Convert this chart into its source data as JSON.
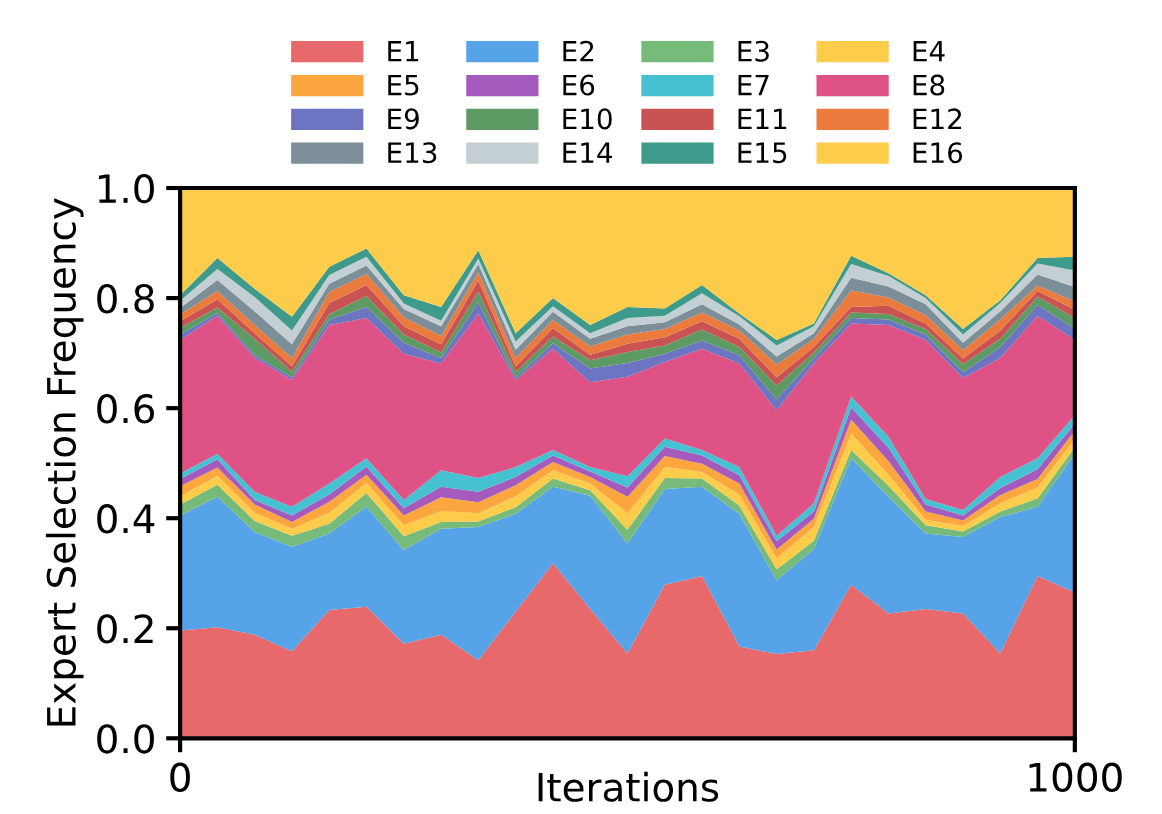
{
  "chart_data": {
    "type": "area",
    "stacked": true,
    "xlabel": "Iterations",
    "ylabel": "Expert Selection Frequency",
    "x": [
      0,
      41.7,
      83.3,
      125,
      166.7,
      208.3,
      250,
      291.7,
      333.3,
      375,
      416.7,
      458.3,
      500,
      541.7,
      583.3,
      625,
      666.7,
      708.3,
      750,
      791.7,
      833.3,
      875,
      916.7,
      958.3,
      1000
    ],
    "xlim": [
      0,
      1000
    ],
    "xticks": [
      0,
      1000
    ],
    "ylim": [
      0,
      1.0
    ],
    "yticks": [
      {
        "value": 0,
        "label": "0.0"
      },
      {
        "value": 0.2,
        "label": "0.2"
      },
      {
        "value": 0.4,
        "label": "0.4"
      },
      {
        "value": 0.6,
        "label": "0.6"
      },
      {
        "value": 0.8,
        "label": "0.8"
      },
      {
        "value": 1.0,
        "label": "1.0"
      }
    ],
    "legend": "top",
    "grid": false,
    "series": [
      {
        "name": "E1",
        "color": "#e8696b",
        "values": [
          0.196,
          0.202,
          0.188,
          0.158,
          0.233,
          0.239,
          0.172,
          0.188,
          0.142,
          0.23,
          0.318,
          0.235,
          0.154,
          0.279,
          0.295,
          0.167,
          0.153,
          0.16,
          0.279,
          0.227,
          0.235,
          0.227,
          0.154,
          0.295,
          0.265
        ]
      },
      {
        "name": "E2",
        "color": "#56a3e8",
        "values": [
          0.209,
          0.237,
          0.187,
          0.19,
          0.139,
          0.182,
          0.17,
          0.193,
          0.242,
          0.178,
          0.139,
          0.206,
          0.2,
          0.174,
          0.162,
          0.241,
          0.134,
          0.184,
          0.23,
          0.212,
          0.137,
          0.139,
          0.248,
          0.126,
          0.252
        ]
      },
      {
        "name": "E3",
        "color": "#77bb7a",
        "values": [
          0.02,
          0.022,
          0.02,
          0.02,
          0.018,
          0.025,
          0.025,
          0.012,
          0.01,
          0.012,
          0.015,
          0.01,
          0.025,
          0.02,
          0.015,
          0.015,
          0.02,
          0.015,
          0.015,
          0.02,
          0.015,
          0.01,
          0.01,
          0.015,
          0.012
        ]
      },
      {
        "name": "E4",
        "color": "#fdcc4b",
        "values": [
          0.015,
          0.016,
          0.015,
          0.013,
          0.02,
          0.018,
          0.02,
          0.02,
          0.015,
          0.02,
          0.015,
          0.012,
          0.03,
          0.02,
          0.012,
          0.02,
          0.02,
          0.025,
          0.03,
          0.02,
          0.01,
          0.01,
          0.015,
          0.02,
          0.015
        ]
      },
      {
        "name": "E5",
        "color": "#fca63f",
        "values": [
          0.018,
          0.015,
          0.015,
          0.012,
          0.02,
          0.015,
          0.018,
          0.025,
          0.02,
          0.02,
          0.015,
          0.012,
          0.03,
          0.02,
          0.015,
          0.02,
          0.016,
          0.015,
          0.025,
          0.025,
          0.015,
          0.01,
          0.015,
          0.015,
          0.015
        ]
      },
      {
        "name": "E6",
        "color": "#a45bbd",
        "values": [
          0.013,
          0.015,
          0.008,
          0.012,
          0.013,
          0.015,
          0.013,
          0.019,
          0.019,
          0.015,
          0.012,
          0.01,
          0.017,
          0.017,
          0.015,
          0.015,
          0.015,
          0.013,
          0.022,
          0.024,
          0.013,
          0.009,
          0.013,
          0.018,
          0.013
        ]
      },
      {
        "name": "E7",
        "color": "#45c1d2",
        "values": [
          0.01,
          0.01,
          0.015,
          0.016,
          0.02,
          0.015,
          0.015,
          0.03,
          0.025,
          0.018,
          0.01,
          0.008,
          0.02,
          0.015,
          0.01,
          0.015,
          0.01,
          0.015,
          0.02,
          0.02,
          0.01,
          0.01,
          0.02,
          0.02,
          0.015
        ]
      },
      {
        "name": "E8",
        "color": "#de5286",
        "values": [
          0.243,
          0.251,
          0.243,
          0.23,
          0.288,
          0.255,
          0.266,
          0.194,
          0.299,
          0.158,
          0.184,
          0.154,
          0.181,
          0.139,
          0.184,
          0.188,
          0.228,
          0.254,
          0.133,
          0.203,
          0.289,
          0.24,
          0.216,
          0.259,
          0.137
        ]
      },
      {
        "name": "E9",
        "color": "#6b75c1",
        "values": [
          0.01,
          0.005,
          0.005,
          0.005,
          0.01,
          0.02,
          0.02,
          0.01,
          0.02,
          0.005,
          0.01,
          0.025,
          0.025,
          0.015,
          0.015,
          0.015,
          0.02,
          0.01,
          0.01,
          0.01,
          0.01,
          0.01,
          0.02,
          0.02,
          0.02
        ]
      },
      {
        "name": "E10",
        "color": "#5e9a63",
        "values": [
          0.012,
          0.01,
          0.03,
          0.01,
          0.01,
          0.02,
          0.015,
          0.01,
          0.02,
          0.01,
          0.012,
          0.015,
          0.02,
          0.015,
          0.02,
          0.015,
          0.025,
          0.01,
          0.01,
          0.01,
          0.01,
          0.015,
          0.015,
          0.015,
          0.02
        ]
      },
      {
        "name": "E11",
        "color": "#c95253",
        "values": [
          0.012,
          0.015,
          0.01,
          0.01,
          0.02,
          0.02,
          0.015,
          0.015,
          0.02,
          0.01,
          0.015,
          0.01,
          0.015,
          0.015,
          0.015,
          0.015,
          0.015,
          0.01,
          0.01,
          0.015,
          0.01,
          0.01,
          0.015,
          0.01,
          0.015
        ]
      },
      {
        "name": "E12",
        "color": "#eb7a3d",
        "values": [
          0.012,
          0.015,
          0.015,
          0.015,
          0.02,
          0.02,
          0.016,
          0.015,
          0.015,
          0.015,
          0.015,
          0.015,
          0.017,
          0.015,
          0.016,
          0.015,
          0.023,
          0.015,
          0.03,
          0.015,
          0.015,
          0.015,
          0.02,
          0.01,
          0.015
        ]
      },
      {
        "name": "E13",
        "color": "#7c8e98",
        "values": [
          0.012,
          0.02,
          0.025,
          0.025,
          0.015,
          0.015,
          0.015,
          0.018,
          0.015,
          0.015,
          0.015,
          0.014,
          0.015,
          0.012,
          0.015,
          0.011,
          0.015,
          0.01,
          0.023,
          0.02,
          0.02,
          0.014,
          0.015,
          0.02,
          0.026
        ]
      },
      {
        "name": "E14",
        "color": "#c3cfd3",
        "values": [
          0.013,
          0.02,
          0.026,
          0.025,
          0.016,
          0.016,
          0.01,
          0.01,
          0.01,
          0.015,
          0.01,
          0.01,
          0.015,
          0.012,
          0.02,
          0.015,
          0.02,
          0.013,
          0.025,
          0.019,
          0.011,
          0.015,
          0.015,
          0.02,
          0.03
        ]
      },
      {
        "name": "E15",
        "color": "#3e9a8b",
        "values": [
          0.01,
          0.02,
          0.015,
          0.025,
          0.015,
          0.015,
          0.015,
          0.025,
          0.015,
          0.015,
          0.015,
          0.015,
          0.02,
          0.013,
          0.015,
          0.005,
          0.01,
          0.005,
          0.015,
          0.005,
          0.005,
          0.01,
          0.005,
          0.01,
          0.025
        ]
      },
      {
        "name": "E16",
        "color": "#fdcc4b",
        "values": [
          0.195,
          0.127,
          0.183,
          0.234,
          0.143,
          0.11,
          0.195,
          0.216,
          0.113,
          0.264,
          0.2,
          0.249,
          0.216,
          0.219,
          0.176,
          0.228,
          0.276,
          0.246,
          0.123,
          0.155,
          0.195,
          0.256,
          0.204,
          0.127,
          0.125
        ]
      }
    ]
  }
}
